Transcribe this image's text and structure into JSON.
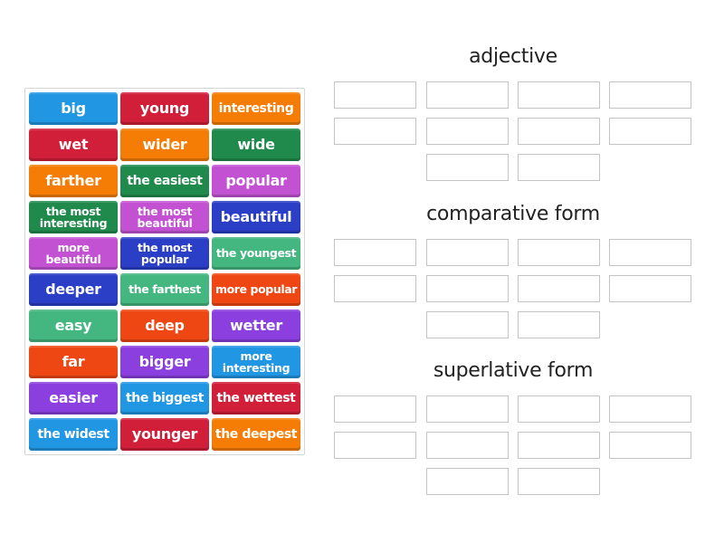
{
  "colors": {
    "blue": "#2196e3",
    "red": "#d11f3a",
    "orange": "#f57d06",
    "green": "#1f8a4c",
    "magenta": "#c352d3",
    "navy": "#2a3ec6",
    "teal": "#44b67f",
    "redorange": "#ef4713",
    "purple": "#8a3fde"
  },
  "tiles": [
    {
      "text": "big",
      "color": "blue"
    },
    {
      "text": "young",
      "color": "red"
    },
    {
      "text": "interesting",
      "color": "orange"
    },
    {
      "text": "wet",
      "color": "red"
    },
    {
      "text": "wider",
      "color": "orange"
    },
    {
      "text": "wide",
      "color": "green"
    },
    {
      "text": "farther",
      "color": "orange"
    },
    {
      "text": "the easiest",
      "color": "green"
    },
    {
      "text": "popular",
      "color": "magenta"
    },
    {
      "text": "the most interesting",
      "color": "green"
    },
    {
      "text": "the most beautiful",
      "color": "magenta"
    },
    {
      "text": "beautiful",
      "color": "navy"
    },
    {
      "text": "more beautiful",
      "color": "magenta"
    },
    {
      "text": "the most popular",
      "color": "navy"
    },
    {
      "text": "the youngest",
      "color": "teal"
    },
    {
      "text": "deeper",
      "color": "navy"
    },
    {
      "text": "the farthest",
      "color": "teal"
    },
    {
      "text": "more popular",
      "color": "redorange"
    },
    {
      "text": "easy",
      "color": "teal"
    },
    {
      "text": "deep",
      "color": "redorange"
    },
    {
      "text": "wetter",
      "color": "purple"
    },
    {
      "text": "far",
      "color": "redorange"
    },
    {
      "text": "bigger",
      "color": "purple"
    },
    {
      "text": "more interesting",
      "color": "blue"
    },
    {
      "text": "easier",
      "color": "purple"
    },
    {
      "text": "the biggest",
      "color": "blue"
    },
    {
      "text": "the wettest",
      "color": "red"
    },
    {
      "text": "the widest",
      "color": "blue"
    },
    {
      "text": "younger",
      "color": "red"
    },
    {
      "text": "the deepest",
      "color": "orange"
    }
  ],
  "groups": [
    {
      "title": "adjective",
      "slots": 10
    },
    {
      "title": "comparative form",
      "slots": 10
    },
    {
      "title": "superlative form",
      "slots": 10
    }
  ]
}
